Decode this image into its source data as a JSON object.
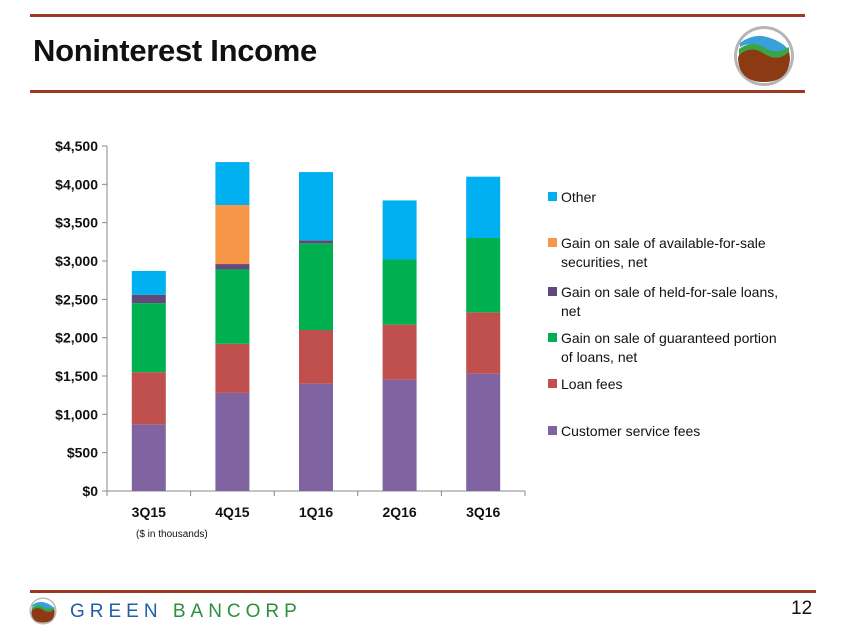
{
  "header": {
    "title": "Noninterest Income"
  },
  "footer": {
    "brand_left": "GREEN",
    "brand_right": "BANCORP",
    "page_number": "12"
  },
  "colors": {
    "rule": "#9a3b1f"
  },
  "chart_data": {
    "type": "bar",
    "stacked": true,
    "title": "",
    "xlabel": "",
    "ylabel": "",
    "note": "($ in thousands)",
    "categories": [
      "3Q15",
      "4Q15",
      "1Q16",
      "2Q16",
      "3Q16"
    ],
    "ylim": [
      0,
      4500
    ],
    "yticks": [
      0,
      500,
      1000,
      1500,
      2000,
      2500,
      3000,
      3500,
      4000,
      4500
    ],
    "ytick_labels": [
      "$0",
      "$500",
      "$1,000",
      "$1,500",
      "$2,000",
      "$2,500",
      "$3,000",
      "$3,500",
      "$4,000",
      "$4,500"
    ],
    "legend_position": "right",
    "series": [
      {
        "name": "Customer service fees",
        "color": "#8064a2",
        "values": [
          870,
          1280,
          1400,
          1450,
          1530
        ]
      },
      {
        "name": "Loan fees",
        "color": "#c0504d",
        "values": [
          680,
          640,
          700,
          720,
          800
        ]
      },
      {
        "name": "Gain on sale of guaranteed portion of loans, net",
        "color": "#00b050",
        "values": [
          900,
          970,
          1130,
          850,
          970
        ]
      },
      {
        "name": "Gain on sale of held-for-sale loans, net",
        "color": "#604a7b",
        "values": [
          110,
          70,
          40,
          0,
          0
        ]
      },
      {
        "name": "Gain on sale of available-for-sale securities, net",
        "color": "#f79646",
        "values": [
          0,
          770,
          0,
          0,
          0
        ]
      },
      {
        "name": "Other",
        "color": "#00b0f0",
        "values": [
          310,
          560,
          890,
          770,
          800
        ]
      }
    ],
    "legend_order": [
      {
        "series": 5,
        "lines": [
          "Other"
        ]
      },
      {
        "series": 4,
        "lines": [
          "Gain on sale of available-for-sale",
          "securities, net"
        ]
      },
      {
        "series": 3,
        "lines": [
          "Gain on sale of held-for-sale loans,",
          "net"
        ]
      },
      {
        "series": 2,
        "lines": [
          "Gain on sale of guaranteed portion",
          "of loans, net"
        ]
      },
      {
        "series": 1,
        "lines": [
          "Loan fees"
        ]
      },
      {
        "series": 0,
        "lines": [
          "Customer service fees"
        ]
      }
    ]
  }
}
